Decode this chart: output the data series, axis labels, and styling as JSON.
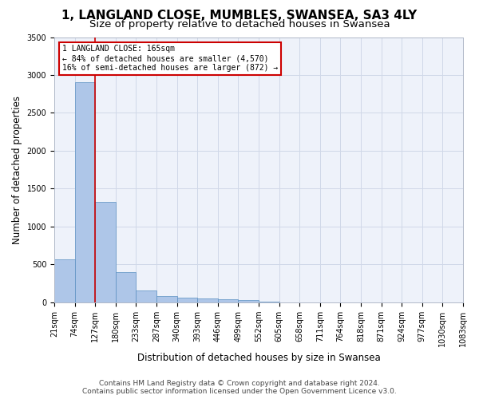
{
  "title": "1, LANGLAND CLOSE, MUMBLES, SWANSEA, SA3 4LY",
  "subtitle": "Size of property relative to detached houses in Swansea",
  "xlabel": "Distribution of detached houses by size in Swansea",
  "ylabel": "Number of detached properties",
  "bin_labels": [
    "21sqm",
    "74sqm",
    "127sqm",
    "180sqm",
    "233sqm",
    "287sqm",
    "340sqm",
    "393sqm",
    "446sqm",
    "499sqm",
    "552sqm",
    "605sqm",
    "658sqm",
    "711sqm",
    "764sqm",
    "818sqm",
    "871sqm",
    "924sqm",
    "977sqm",
    "1030sqm",
    "1083sqm"
  ],
  "bar_heights": [
    570,
    2900,
    1320,
    400,
    155,
    80,
    60,
    50,
    40,
    30,
    5,
    0,
    0,
    0,
    0,
    0,
    0,
    0,
    0,
    0
  ],
  "bar_color": "#aec6e8",
  "bar_edge_color": "#5a8fc2",
  "bar_edge_width": 0.5,
  "grid_color": "#d0d8e8",
  "background_color": "#eef2fa",
  "red_line_x": 2.0,
  "annotation_text": "1 LANGLAND CLOSE: 165sqm\n← 84% of detached houses are smaller (4,570)\n16% of semi-detached houses are larger (872) →",
  "annotation_box_color": "#ffffff",
  "annotation_border_color": "#cc0000",
  "footer_text": "Contains HM Land Registry data © Crown copyright and database right 2024.\nContains public sector information licensed under the Open Government Licence v3.0.",
  "ylim": [
    0,
    3500
  ],
  "yticks": [
    0,
    500,
    1000,
    1500,
    2000,
    2500,
    3000,
    3500
  ],
  "title_fontsize": 11,
  "subtitle_fontsize": 9.5,
  "axis_label_fontsize": 8.5,
  "tick_fontsize": 7,
  "footer_fontsize": 6.5
}
